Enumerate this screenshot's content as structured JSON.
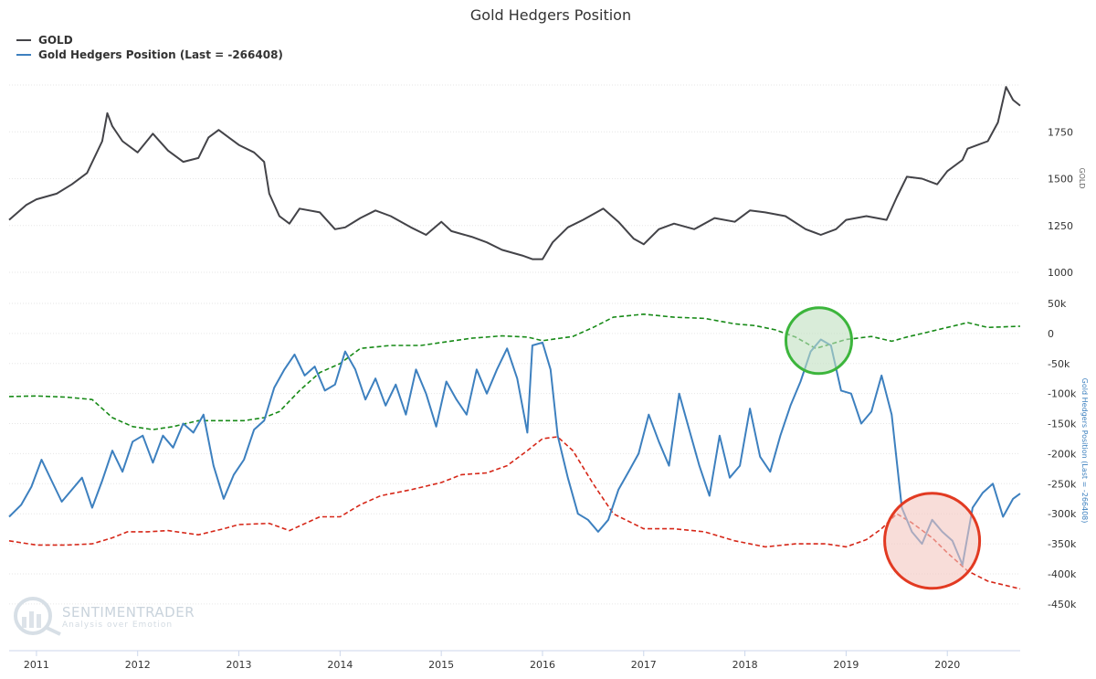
{
  "chart_data": {
    "type": "line",
    "title": "Gold Hedgers Position",
    "legend": {
      "placement": "top-left",
      "entries": [
        {
          "label": "GOLD",
          "color": "#434348"
        },
        {
          "label": "Gold Hedgers Position (Last = -266408)",
          "color": "#3d80bf"
        }
      ]
    },
    "x_axis": {
      "ticks": [
        "2011",
        "2012",
        "2013",
        "2014",
        "2015",
        "2016",
        "2017",
        "2018",
        "2019",
        "2020"
      ],
      "range": [
        2010.73,
        2020.72
      ]
    },
    "gold_axis": {
      "title": "GOLD",
      "ticks": [
        "1750",
        "1500",
        "1250",
        "1000"
      ],
      "tick_values": [
        1750,
        1500,
        1250,
        1000
      ],
      "range": [
        1000,
        2000
      ],
      "color": "#666666"
    },
    "hedgers_axis": {
      "title": "Gold Hedgers Position (Last = -266408)",
      "ticks": [
        "50k",
        "0",
        "-50k",
        "-100k",
        "-150k",
        "-200k",
        "-250k",
        "-300k",
        "-350k",
        "-400k",
        "-450k"
      ],
      "tick_values": [
        50000,
        0,
        -50000,
        -100000,
        -150000,
        -200000,
        -250000,
        -300000,
        -350000,
        -400000,
        -450000
      ],
      "range": [
        -470000,
        50000
      ],
      "color": "#3d80bf"
    },
    "grid": true,
    "series": [
      {
        "name": "GOLD",
        "axis": "gold",
        "color": "#434348",
        "style": "solid",
        "x": [
          2010.73,
          2010.9,
          2011.0,
          2011.2,
          2011.35,
          2011.5,
          2011.65,
          2011.7,
          2011.75,
          2011.85,
          2012.0,
          2012.15,
          2012.3,
          2012.45,
          2012.6,
          2012.7,
          2012.8,
          2012.9,
          2013.0,
          2013.15,
          2013.25,
          2013.3,
          2013.4,
          2013.5,
          2013.6,
          2013.8,
          2013.95,
          2014.05,
          2014.2,
          2014.35,
          2014.5,
          2014.7,
          2014.85,
          2015.0,
          2015.1,
          2015.3,
          2015.45,
          2015.6,
          2015.8,
          2015.9,
          2016.0,
          2016.1,
          2016.25,
          2016.4,
          2016.6,
          2016.75,
          2016.9,
          2017.0,
          2017.15,
          2017.3,
          2017.5,
          2017.7,
          2017.9,
          2018.05,
          2018.2,
          2018.4,
          2018.6,
          2018.75,
          2018.9,
          2019.0,
          2019.2,
          2019.4,
          2019.5,
          2019.6,
          2019.75,
          2019.9,
          2020.0,
          2020.15,
          2020.2,
          2020.3,
          2020.4,
          2020.5,
          2020.58,
          2020.62,
          2020.65,
          2020.72
        ],
        "values": [
          1280,
          1360,
          1390,
          1420,
          1470,
          1530,
          1700,
          1850,
          1780,
          1700,
          1640,
          1740,
          1650,
          1590,
          1610,
          1720,
          1760,
          1720,
          1680,
          1640,
          1590,
          1420,
          1300,
          1260,
          1340,
          1320,
          1230,
          1240,
          1290,
          1330,
          1300,
          1240,
          1200,
          1270,
          1220,
          1190,
          1160,
          1120,
          1090,
          1070,
          1070,
          1160,
          1240,
          1280,
          1340,
          1270,
          1180,
          1150,
          1230,
          1260,
          1230,
          1290,
          1270,
          1330,
          1320,
          1300,
          1230,
          1200,
          1230,
          1280,
          1300,
          1280,
          1400,
          1510,
          1500,
          1470,
          1540,
          1600,
          1660,
          1680,
          1700,
          1800,
          1990,
          1950,
          1920,
          1890
        ]
      },
      {
        "name": "Gold Hedgers Position (Last = -266408)",
        "axis": "hedgers",
        "color": "#3d80bf",
        "style": "solid",
        "x": [
          2010.73,
          2010.85,
          2010.95,
          2011.05,
          2011.15,
          2011.25,
          2011.35,
          2011.45,
          2011.55,
          2011.65,
          2011.75,
          2011.85,
          2011.95,
          2012.05,
          2012.15,
          2012.25,
          2012.35,
          2012.45,
          2012.55,
          2012.65,
          2012.75,
          2012.85,
          2012.95,
          2013.05,
          2013.15,
          2013.25,
          2013.35,
          2013.45,
          2013.55,
          2013.65,
          2013.75,
          2013.85,
          2013.95,
          2014.05,
          2014.15,
          2014.25,
          2014.35,
          2014.45,
          2014.55,
          2014.65,
          2014.75,
          2014.85,
          2014.95,
          2015.05,
          2015.15,
          2015.25,
          2015.35,
          2015.45,
          2015.55,
          2015.65,
          2015.75,
          2015.85,
          2015.9,
          2016.0,
          2016.08,
          2016.15,
          2016.25,
          2016.35,
          2016.45,
          2016.55,
          2016.65,
          2016.75,
          2016.85,
          2016.95,
          2017.05,
          2017.15,
          2017.25,
          2017.35,
          2017.45,
          2017.55,
          2017.65,
          2017.75,
          2017.85,
          2017.95,
          2018.05,
          2018.15,
          2018.25,
          2018.35,
          2018.45,
          2018.55,
          2018.65,
          2018.75,
          2018.85,
          2018.95,
          2019.05,
          2019.15,
          2019.25,
          2019.35,
          2019.45,
          2019.55,
          2019.65,
          2019.75,
          2019.85,
          2019.95,
          2020.05,
          2020.15,
          2020.25,
          2020.35,
          2020.45,
          2020.55,
          2020.65,
          2020.72
        ],
        "values": [
          -305000,
          -285000,
          -255000,
          -210000,
          -245000,
          -280000,
          -260000,
          -240000,
          -290000,
          -245000,
          -195000,
          -230000,
          -180000,
          -170000,
          -215000,
          -170000,
          -190000,
          -150000,
          -165000,
          -135000,
          -220000,
          -275000,
          -235000,
          -210000,
          -160000,
          -145000,
          -90000,
          -60000,
          -35000,
          -70000,
          -55000,
          -95000,
          -85000,
          -30000,
          -60000,
          -110000,
          -75000,
          -120000,
          -85000,
          -135000,
          -60000,
          -100000,
          -155000,
          -80000,
          -110000,
          -135000,
          -60000,
          -100000,
          -60000,
          -25000,
          -75000,
          -165000,
          -20000,
          -15000,
          -60000,
          -170000,
          -240000,
          -300000,
          -310000,
          -330000,
          -310000,
          -260000,
          -230000,
          -200000,
          -135000,
          -180000,
          -220000,
          -100000,
          -160000,
          -220000,
          -270000,
          -170000,
          -240000,
          -220000,
          -125000,
          -205000,
          -230000,
          -170000,
          -120000,
          -80000,
          -30000,
          -10000,
          -20000,
          -95000,
          -100000,
          -150000,
          -130000,
          -70000,
          -135000,
          -290000,
          -330000,
          -350000,
          -310000,
          -330000,
          -345000,
          -385000,
          -290000,
          -265000,
          -250000,
          -305000,
          -275000,
          -266408
        ]
      },
      {
        "name": "",
        "axis": "hedgers",
        "color": "#178a17",
        "style": "dashed",
        "x": [
          2010.73,
          2011.0,
          2011.3,
          2011.55,
          2011.75,
          2011.95,
          2012.15,
          2012.35,
          2012.6,
          2012.85,
          2013.05,
          2013.25,
          2013.4,
          2013.6,
          2013.8,
          2014.0,
          2014.2,
          2014.5,
          2014.8,
          2015.0,
          2015.3,
          2015.6,
          2015.85,
          2016.0,
          2016.3,
          2016.5,
          2016.7,
          2017.0,
          2017.3,
          2017.6,
          2017.9,
          2018.1,
          2018.3,
          2018.5,
          2018.7,
          2019.0,
          2019.25,
          2019.45,
          2019.6,
          2019.8,
          2020.0,
          2020.2,
          2020.4,
          2020.72
        ],
        "values": [
          -105000,
          -104000,
          -106000,
          -110000,
          -140000,
          -155000,
          -160000,
          -155000,
          -145000,
          -145000,
          -145000,
          -140000,
          -130000,
          -95000,
          -65000,
          -50000,
          -25000,
          -20000,
          -20000,
          -15000,
          -8000,
          -4000,
          -6000,
          -12000,
          -5000,
          10000,
          27000,
          32000,
          27000,
          25000,
          16000,
          13000,
          6000,
          -6000,
          -25000,
          -10000,
          -5000,
          -13000,
          -6000,
          2000,
          10000,
          18000,
          10000,
          12000
        ]
      },
      {
        "name": "",
        "axis": "hedgers",
        "color": "#d62718",
        "style": "dashed",
        "x": [
          2010.73,
          2011.0,
          2011.3,
          2011.55,
          2011.75,
          2011.9,
          2012.1,
          2012.3,
          2012.6,
          2012.85,
          2013.0,
          2013.3,
          2013.5,
          2013.8,
          2014.0,
          2014.2,
          2014.4,
          2014.7,
          2015.0,
          2015.2,
          2015.45,
          2015.65,
          2015.85,
          2016.0,
          2016.15,
          2016.3,
          2016.5,
          2016.7,
          2017.0,
          2017.3,
          2017.6,
          2017.9,
          2018.2,
          2018.5,
          2018.8,
          2019.0,
          2019.2,
          2019.35,
          2019.5,
          2019.65,
          2019.85,
          2020.0,
          2020.2,
          2020.4,
          2020.72
        ],
        "values": [
          -345000,
          -352000,
          -352000,
          -350000,
          -340000,
          -330000,
          -330000,
          -328000,
          -335000,
          -325000,
          -318000,
          -316000,
          -328000,
          -305000,
          -305000,
          -285000,
          -270000,
          -260000,
          -248000,
          -235000,
          -232000,
          -220000,
          -195000,
          -175000,
          -172000,
          -195000,
          -250000,
          -300000,
          -325000,
          -325000,
          -330000,
          -345000,
          -355000,
          -350000,
          -350000,
          -355000,
          -343000,
          -325000,
          -300000,
          -315000,
          -340000,
          -365000,
          -395000,
          -412000,
          -425000
        ]
      }
    ],
    "annotations": [
      {
        "type": "circle",
        "x": 2018.73,
        "y": -12000,
        "fill": "#bfe0bf",
        "stroke": "#3cb53c"
      },
      {
        "type": "circle",
        "x": 2019.85,
        "y": -345000,
        "fill": "#f3c7c0",
        "stroke": "#e23a22"
      }
    ]
  },
  "watermark": {
    "name": "SENTIMENTRADER",
    "tagline": "Analysis over Emotion"
  }
}
